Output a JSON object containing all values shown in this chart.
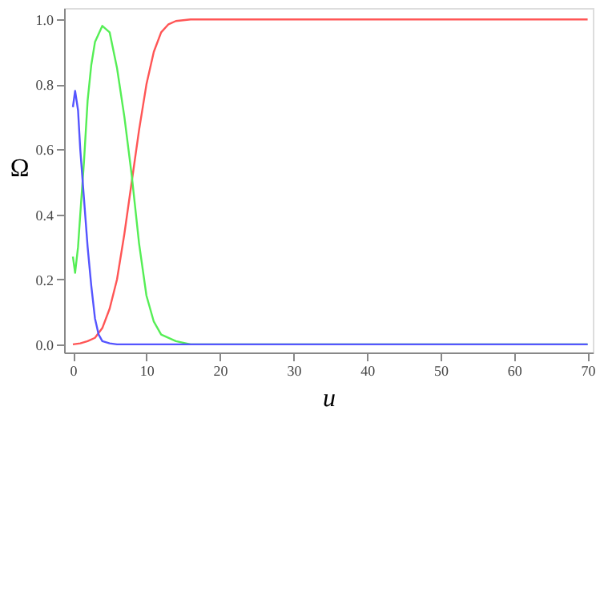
{
  "chart_data": {
    "type": "line",
    "xlabel": "u",
    "ylabel": "Ω",
    "xlim": [
      -1.2,
      70.7
    ],
    "ylim": [
      -0.025,
      1.035
    ],
    "xticks": [
      0,
      10,
      20,
      30,
      40,
      50,
      60,
      70
    ],
    "yticks": [
      {
        "value": 0,
        "label": "0.0"
      },
      {
        "value": 0.2,
        "label": "0.2"
      },
      {
        "value": 0.4,
        "label": "0.4"
      },
      {
        "value": 0.6,
        "label": "0.6"
      },
      {
        "value": 0.8,
        "label": "0.8"
      },
      {
        "value": 1,
        "label": "1.0"
      }
    ],
    "grid": false,
    "legend": false,
    "marker": "none",
    "line_style": "solid",
    "series": [
      {
        "color": "#ff5555",
        "x": [
          0,
          1,
          2,
          3,
          4,
          5,
          6,
          7,
          8,
          9,
          10,
          11,
          12,
          13,
          14,
          16,
          20,
          30,
          70
        ],
        "values": [
          0.0,
          0.003,
          0.01,
          0.02,
          0.05,
          0.11,
          0.2,
          0.34,
          0.5,
          0.66,
          0.8,
          0.9,
          0.96,
          0.985,
          0.995,
          1.0,
          1.0,
          1.0,
          1.0
        ]
      },
      {
        "color": "#55ee55",
        "x": [
          0,
          0.3,
          0.7,
          1,
          1.5,
          2,
          2.5,
          3,
          4,
          5,
          6,
          7,
          8,
          9,
          10,
          11,
          12,
          14,
          16,
          20,
          70
        ],
        "values": [
          0.27,
          0.22,
          0.3,
          0.4,
          0.56,
          0.75,
          0.86,
          0.93,
          0.98,
          0.96,
          0.85,
          0.7,
          0.52,
          0.31,
          0.15,
          0.07,
          0.03,
          0.01,
          0.0,
          0.0,
          0.0
        ]
      },
      {
        "color": "#5555ff",
        "x": [
          0,
          0.3,
          0.7,
          1,
          1.5,
          2,
          2.5,
          3,
          3.5,
          4,
          5,
          6,
          10,
          70
        ],
        "values": [
          0.73,
          0.78,
          0.72,
          0.6,
          0.45,
          0.3,
          0.18,
          0.08,
          0.03,
          0.01,
          0.003,
          0.0,
          0.0,
          0.0
        ]
      }
    ]
  }
}
